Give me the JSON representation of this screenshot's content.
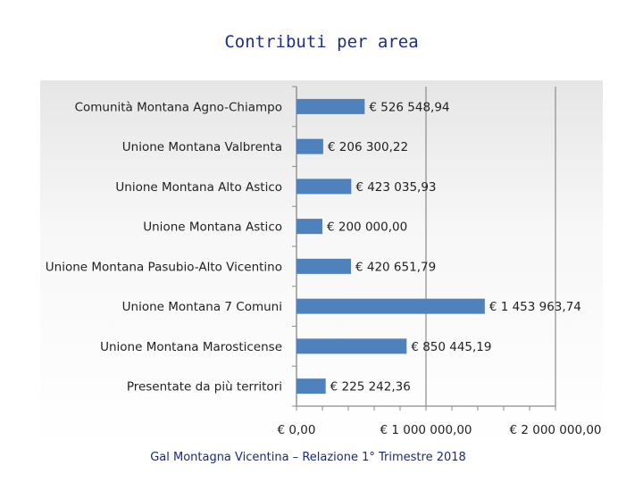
{
  "chart_data": {
    "type": "bar",
    "orientation": "horizontal",
    "title": "Contributi per area",
    "categories": [
      "Comunità Montana Agno-Chiampo",
      "Unione Montana Valbrenta",
      "Unione Montana Alto Astico",
      "Unione Montana Astico",
      "Unione Montana Pasubio-Alto Vicentino",
      "Unione Montana 7 Comuni",
      "Unione Montana Marosticense",
      "Presentate da più territori"
    ],
    "values": [
      526548.94,
      206300.22,
      423035.93,
      200000.0,
      420651.79,
      1453963.74,
      850445.19,
      225242.36
    ],
    "value_labels": [
      "€ 526 548,94",
      "€ 206 300,22",
      "€ 423 035,93",
      "€ 200 000,00",
      "€ 420 651,79",
      "€ 1 453 963,74",
      "€ 850 445,19",
      "€ 225 242,36"
    ],
    "xlim": [
      0,
      2000000
    ],
    "x_ticks": [
      0,
      1000000,
      2000000
    ],
    "x_tick_labels": [
      "€ 0,00",
      "€ 1 000 000,00",
      "€ 2 000 000,00"
    ],
    "xlabel": "",
    "ylabel": "",
    "grid": "vertical major gridlines",
    "legend": "none",
    "colors": {
      "bar": "#4f81bd",
      "title": "#1f2d8c",
      "gridline": "#8c8c8c"
    }
  },
  "footer": "Gal Montagna Vicentina – Relazione 1° Trimestre 2018"
}
